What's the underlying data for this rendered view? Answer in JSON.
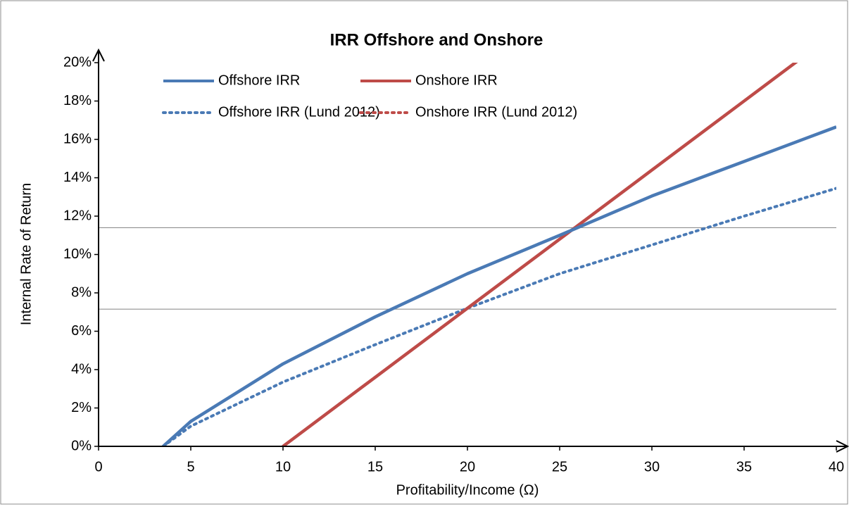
{
  "chart_data": {
    "type": "line",
    "title": "IRR Offshore and Onshore",
    "xlabel": "Profitability/Income (Ω)",
    "ylabel": "Internal Rate of Return",
    "xlim": [
      0,
      40
    ],
    "ylim": [
      0,
      20
    ],
    "xticks": [
      0,
      5,
      10,
      15,
      20,
      25,
      30,
      35,
      40
    ],
    "yticks": [
      {
        "value": 0,
        "label": "0%"
      },
      {
        "value": 2,
        "label": "2%"
      },
      {
        "value": 4,
        "label": "4%"
      },
      {
        "value": 6,
        "label": "6%"
      },
      {
        "value": 8,
        "label": "8%"
      },
      {
        "value": 10,
        "label": "10%"
      },
      {
        "value": 12,
        "label": "12%"
      },
      {
        "value": 14,
        "label": "14%"
      },
      {
        "value": 16,
        "label": "16%"
      },
      {
        "value": 18,
        "label": "18%"
      },
      {
        "value": 20,
        "label": "20%"
      }
    ],
    "reference_lines": [
      11.4,
      7.15
    ],
    "series": [
      {
        "name": "Offshore IRR",
        "color": "#4a7ab5",
        "dash": "solid",
        "x": [
          3.5,
          5,
          10,
          15,
          20,
          25,
          30,
          35,
          40
        ],
        "values": [
          0,
          1.3,
          4.3,
          6.75,
          9,
          11,
          13.05,
          14.85,
          16.65
        ]
      },
      {
        "name": "Onshore IRR",
        "color": "#be4b48",
        "dash": "solid",
        "x": [
          10,
          15,
          20,
          25,
          30,
          35,
          40
        ],
        "values": [
          0,
          3.6,
          7.2,
          10.8,
          14.4,
          18,
          21.6
        ]
      },
      {
        "name": "Offshore IRR (Lund 2012)",
        "color": "#4a7ab5",
        "dash": "dotted",
        "x": [
          3.5,
          5,
          10,
          15,
          20,
          25,
          30,
          35,
          40
        ],
        "values": [
          0,
          1.05,
          3.35,
          5.3,
          7.2,
          9,
          10.5,
          12,
          13.45
        ]
      },
      {
        "name": "Onshore IRR (Lund 2012)",
        "color": "#be4b48",
        "dash": "dotted",
        "x": [
          10,
          15,
          20,
          25,
          30,
          35,
          40
        ],
        "values": [
          0,
          3.6,
          7.2,
          10.8,
          14.4,
          18,
          21.6
        ]
      }
    ]
  }
}
